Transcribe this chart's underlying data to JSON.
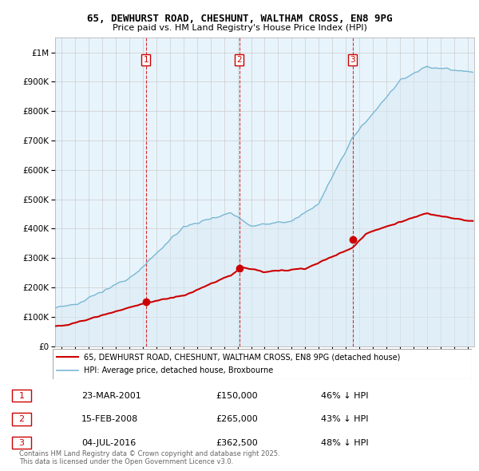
{
  "title_line1": "65, DEWHURST ROAD, CHESHUNT, WALTHAM CROSS, EN8 9PG",
  "title_line2": "Price paid vs. HM Land Registry's House Price Index (HPI)",
  "ytick_values": [
    0,
    100000,
    200000,
    300000,
    400000,
    500000,
    600000,
    700000,
    800000,
    900000,
    1000000
  ],
  "xlim": [
    1994.5,
    2025.5
  ],
  "ylim": [
    0,
    1050000
  ],
  "sale_color": "#cc0000",
  "hpi_color": "#7ab8d4",
  "hpi_fill": "#daeaf4",
  "vline_color": "#cc0000",
  "sales": [
    {
      "year": 2001.22,
      "price": 150000,
      "label": "1"
    },
    {
      "year": 2008.12,
      "price": 265000,
      "label": "2"
    },
    {
      "year": 2016.5,
      "price": 362500,
      "label": "3"
    }
  ],
  "legend_sale_label": "65, DEWHURST ROAD, CHESHUNT, WALTHAM CROSS, EN8 9PG (detached house)",
  "legend_hpi_label": "HPI: Average price, detached house, Broxbourne",
  "table_rows": [
    [
      "1",
      "23-MAR-2001",
      "£150,000",
      "46% ↓ HPI"
    ],
    [
      "2",
      "15-FEB-2008",
      "£265,000",
      "43% ↓ HPI"
    ],
    [
      "3",
      "04-JUL-2016",
      "£362,500",
      "48% ↓ HPI"
    ]
  ],
  "footnote": "Contains HM Land Registry data © Crown copyright and database right 2025.\nThis data is licensed under the Open Government Licence v3.0.",
  "background_color": "#ffffff",
  "grid_color": "#cccccc"
}
